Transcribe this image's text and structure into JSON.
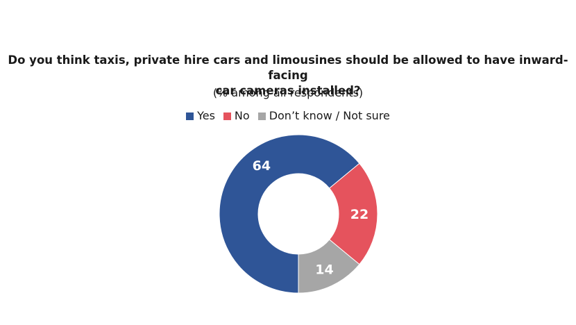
{
  "chart_data": {
    "type": "pie",
    "title_lines": [
      "Do you think taxis, private hire cars and limousines should be allowed to have inward-facing",
      "car cameras installed?"
    ],
    "subtitle": "(% among all respondents)",
    "legend": [
      "Yes",
      "No",
      "Don’t know / Not sure"
    ],
    "categories": [
      "Yes",
      "No",
      "Don’t know / Not sure"
    ],
    "values": [
      64,
      22,
      14
    ],
    "data_labels": [
      "64",
      "22",
      "14"
    ],
    "colors": [
      "#2f5597",
      "#e5535d",
      "#a6a6a6"
    ],
    "donut": true,
    "legend_position": "top"
  }
}
